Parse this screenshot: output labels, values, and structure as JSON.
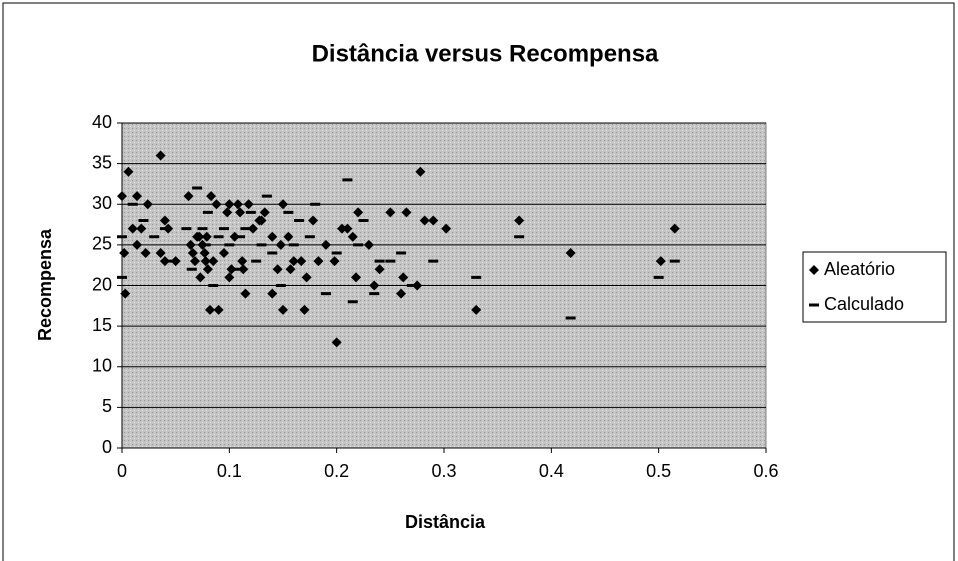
{
  "chart_data": {
    "type": "scatter",
    "title": "Distância versus Recompensa",
    "x_label": "Distância",
    "y_label": "Recompensa",
    "xlim": [
      0,
      0.6
    ],
    "xticks": [
      0,
      0.1,
      0.2,
      0.3,
      0.4,
      0.5,
      0.6
    ],
    "ylim": [
      0,
      40
    ],
    "yticks": [
      0,
      5,
      10,
      15,
      20,
      25,
      30,
      35,
      40
    ],
    "grid": true,
    "legend": "right",
    "series": [
      {
        "name": "Aleatório",
        "color": "#000000",
        "marker": "diamond",
        "x": [
          0,
          0.002,
          0.003,
          0.006,
          0.01,
          0.014,
          0.014,
          0.018,
          0.022,
          0.024,
          0.036,
          0.036,
          0.04,
          0.04,
          0.043,
          0.05,
          0.062,
          0.064,
          0.066,
          0.068,
          0.07,
          0.072,
          0.073,
          0.075,
          0.077,
          0.078,
          0.079,
          0.08,
          0.082,
          0.083,
          0.085,
          0.088,
          0.09,
          0.095,
          0.098,
          0.1,
          0.1,
          0.102,
          0.105,
          0.108,
          0.11,
          0.112,
          0.113,
          0.115,
          0.118,
          0.122,
          0.128,
          0.13,
          0.133,
          0.14,
          0.14,
          0.145,
          0.148,
          0.15,
          0.15,
          0.155,
          0.157,
          0.16,
          0.167,
          0.17,
          0.172,
          0.178,
          0.183,
          0.19,
          0.198,
          0.2,
          0.205,
          0.21,
          0.215,
          0.218,
          0.22,
          0.23,
          0.235,
          0.24,
          0.25,
          0.26,
          0.262,
          0.265,
          0.275,
          0.278,
          0.282,
          0.29,
          0.302,
          0.33,
          0.37,
          0.418,
          0.502,
          0.515
        ],
        "values": [
          31,
          24,
          19,
          34,
          27,
          31,
          25,
          27,
          24,
          30,
          36,
          24,
          23,
          28,
          27,
          23,
          31,
          25,
          24,
          23,
          26,
          26,
          21,
          25,
          24,
          23,
          26,
          22,
          17,
          31,
          23,
          30,
          17,
          24,
          29,
          30,
          21,
          22,
          26,
          30,
          29,
          23,
          22,
          19,
          30,
          27,
          28,
          28,
          29,
          26,
          19,
          22,
          25,
          30,
          17,
          26,
          22,
          23,
          23,
          17,
          21,
          28,
          23,
          25,
          23,
          13,
          27,
          27,
          26,
          21,
          29,
          25,
          20,
          22,
          29,
          19,
          21,
          29,
          20,
          34,
          28,
          28,
          27,
          17,
          28,
          24,
          23,
          27
        ]
      },
      {
        "name": "Calculado",
        "color": "#000000",
        "marker": "dash",
        "x": [
          0,
          0,
          0.01,
          0.02,
          0.03,
          0.04,
          0.048,
          0.06,
          0.065,
          0.07,
          0.075,
          0.078,
          0.08,
          0.085,
          0.09,
          0.095,
          0.1,
          0.105,
          0.11,
          0.115,
          0.12,
          0.125,
          0.13,
          0.135,
          0.14,
          0.148,
          0.155,
          0.16,
          0.165,
          0.175,
          0.18,
          0.19,
          0.2,
          0.21,
          0.215,
          0.22,
          0.225,
          0.235,
          0.24,
          0.25,
          0.26,
          0.27,
          0.29,
          0.33,
          0.37,
          0.418,
          0.5,
          0.515
        ],
        "values": [
          26,
          21,
          30,
          28,
          26,
          27,
          23,
          27,
          22,
          32,
          27,
          25,
          29,
          20,
          26,
          27,
          25,
          22,
          26,
          27,
          29,
          23,
          25,
          31,
          24,
          20,
          29,
          25,
          28,
          26,
          30,
          19,
          24,
          33,
          18,
          25,
          28,
          19,
          23,
          23,
          24,
          20,
          23,
          21,
          26,
          16,
          21,
          23
        ]
      }
    ]
  }
}
